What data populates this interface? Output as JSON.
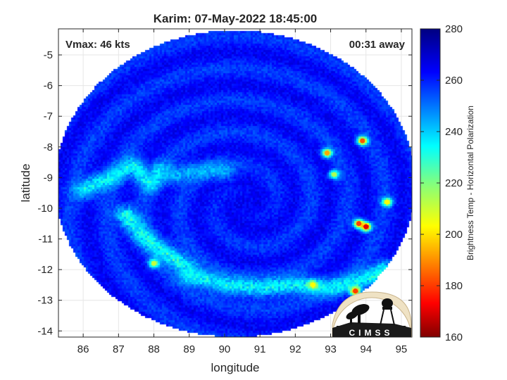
{
  "chart_data": {
    "type": "heatmap",
    "title": "Karim: 07-May-2022 18:45:00",
    "xlabel": "longitude",
    "ylabel": "latitude",
    "xlim": [
      85.3,
      95.3
    ],
    "ylim": [
      -14.2,
      -4.15
    ],
    "x_ticks": [
      86,
      87,
      88,
      89,
      90,
      91,
      92,
      93,
      94,
      95
    ],
    "y_ticks": [
      -5,
      -6,
      -7,
      -8,
      -9,
      -10,
      -11,
      -12,
      -13,
      -14
    ],
    "grid": true,
    "annotations": {
      "vmax": "Vmax: 46 kts",
      "time_away": "00:31 away"
    },
    "colorbar": {
      "label": "Brightness Temp - Horizontal Polarization",
      "range": [
        160,
        280
      ],
      "ticks": [
        280,
        260,
        240,
        220,
        200,
        180,
        160
      ],
      "colormap": "jet"
    },
    "swath": {
      "center": [
        90.3,
        -9.2
      ],
      "radius_deg": 5.1
    },
    "features": {
      "background_bt": 262,
      "eye_center": [
        90.6,
        -9.9
      ],
      "eye_bt": 266,
      "rainbands": [
        {
          "name": "western band",
          "points": [
            [
              86.0,
              -9.4
            ],
            [
              86.8,
              -9.0
            ],
            [
              87.4,
              -8.6
            ],
            [
              87.9,
              -9.2
            ],
            [
              88.2,
              -8.8
            ]
          ],
          "bt": 236
        },
        {
          "name": "north inner band",
          "points": [
            [
              88.5,
              -8.9
            ],
            [
              89.2,
              -8.8
            ],
            [
              89.8,
              -8.75
            ],
            [
              90.0,
              -8.8
            ]
          ],
          "bt": 244
        },
        {
          "name": "southwest band",
          "points": [
            [
              87.2,
              -10.2
            ],
            [
              87.6,
              -10.8
            ],
            [
              88.0,
              -11.2
            ],
            [
              88.5,
              -11.6
            ],
            [
              89.0,
              -12.0
            ]
          ],
          "bt": 234
        },
        {
          "name": "southern band",
          "points": [
            [
              89.0,
              -12.2
            ],
            [
              90.0,
              -12.5
            ],
            [
              91.0,
              -12.6
            ],
            [
              92.0,
              -12.5
            ],
            [
              93.0,
              -12.6
            ],
            [
              94.0,
              -12.3
            ],
            [
              94.5,
              -12.0
            ]
          ],
          "bt": 236
        }
      ],
      "convective_cells": [
        {
          "lon": 93.9,
          "lat": -7.8,
          "bt": 185
        },
        {
          "lon": 92.9,
          "lat": -8.2,
          "bt": 195
        },
        {
          "lon": 94.0,
          "lat": -10.6,
          "bt": 172
        },
        {
          "lon": 93.8,
          "lat": -10.5,
          "bt": 182
        },
        {
          "lon": 93.7,
          "lat": -12.7,
          "bt": 182
        },
        {
          "lon": 94.6,
          "lat": -9.8,
          "bt": 205
        },
        {
          "lon": 88.0,
          "lat": -11.8,
          "bt": 212
        },
        {
          "lon": 92.5,
          "lat": -12.5,
          "bt": 205
        },
        {
          "lon": 93.1,
          "lat": -8.9,
          "bt": 215
        }
      ]
    }
  },
  "logo": {
    "text": "CIMSS"
  }
}
